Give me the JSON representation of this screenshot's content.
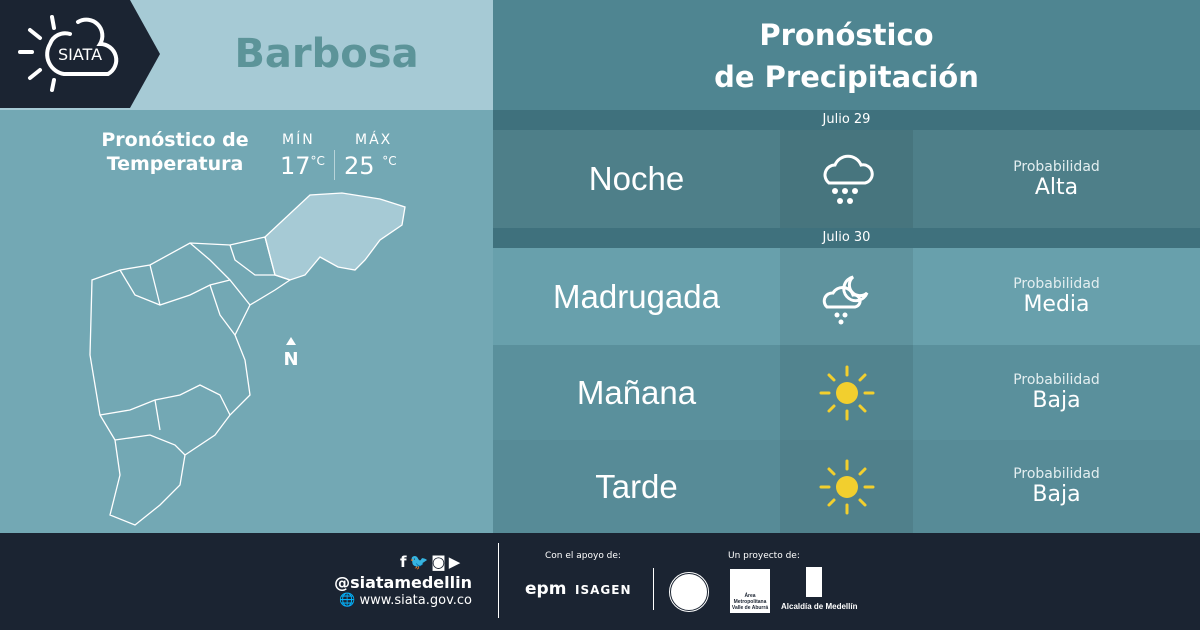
{
  "logo": {
    "text": "SIATA"
  },
  "header": {
    "city": "Barbosa",
    "title_line1": "Pronóstico",
    "title_line2": "de Precipitación"
  },
  "temperature": {
    "title_line1": "Pronóstico de",
    "title_line2": "Temperatura",
    "min_label": "MÍN",
    "min_value": "17",
    "max_label": "MÁX",
    "max_value": "25",
    "unit": "°C"
  },
  "map": {
    "north_label": "N"
  },
  "forecast": {
    "dates": [
      "Julio 29",
      "Julio 30"
    ],
    "rows": [
      {
        "period": "Noche",
        "icon": "heavy-rain-cloud-icon",
        "prob_label": "Probabilidad",
        "prob": "Alta",
        "bg": "#4e7f89"
      },
      {
        "period": "Madrugada",
        "icon": "moon-cloud-rain-icon",
        "prob_label": "Probabilidad",
        "prob": "Media",
        "bg": "#68a0ac"
      },
      {
        "period": "Mañana",
        "icon": "sun-icon",
        "prob_label": "Probabilidad",
        "prob": "Baja",
        "bg": "#5a909c"
      },
      {
        "period": "Tarde",
        "icon": "sun-icon",
        "prob_label": "Probabilidad",
        "prob": "Baja",
        "bg": "#578b97"
      }
    ]
  },
  "footer": {
    "social_icons": [
      "facebook-icon",
      "twitter-icon",
      "instagram-icon",
      "youtube-icon"
    ],
    "handle": "@siatamedellin",
    "website": "www.siata.gov.co",
    "support_label": "Con el apoyo de:",
    "support_logos": [
      "epm",
      "ISAGEN"
    ],
    "project_label": "Un proyecto de:",
    "project_logos": [
      "Área Metropolitana Valle de Aburrá",
      "Alcaldía de Medellín"
    ],
    "alcaldia": "Alcaldía de Medellín",
    "epm": "epm",
    "isagen": "ISAGEN"
  },
  "colors": {
    "dark": "#1b2432",
    "sun": "#f2cf2e"
  }
}
